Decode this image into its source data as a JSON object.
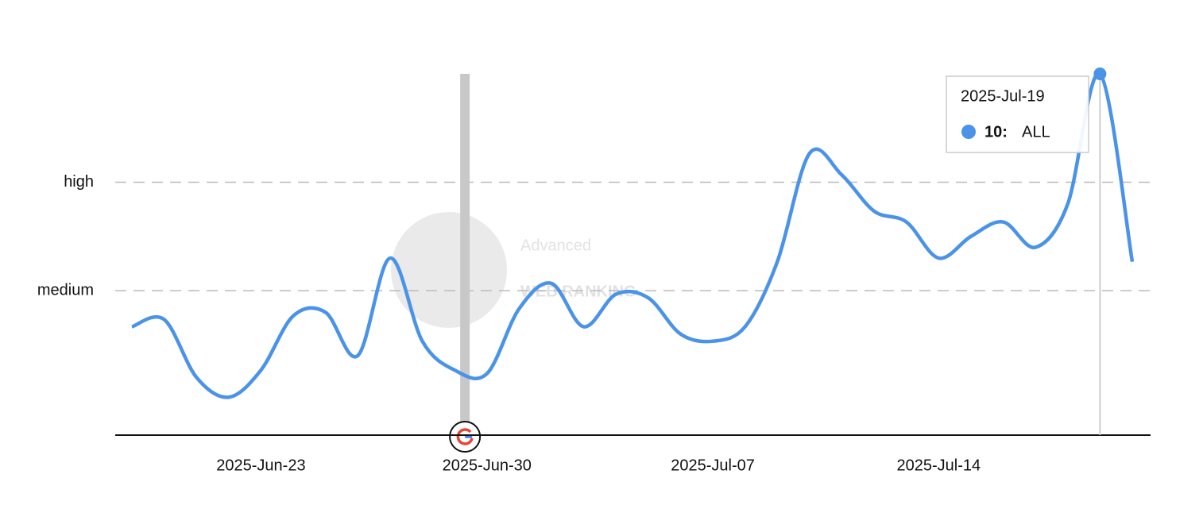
{
  "chart_data": {
    "type": "line",
    "x": [
      "2025-Jun-19",
      "2025-Jun-20",
      "2025-Jun-21",
      "2025-Jun-22",
      "2025-Jun-23",
      "2025-Jun-24",
      "2025-Jun-25",
      "2025-Jun-26",
      "2025-Jun-27",
      "2025-Jun-28",
      "2025-Jun-29",
      "2025-Jun-30",
      "2025-Jul-01",
      "2025-Jul-02",
      "2025-Jul-03",
      "2025-Jul-04",
      "2025-Jul-05",
      "2025-Jul-06",
      "2025-Jul-07",
      "2025-Jul-08",
      "2025-Jul-09",
      "2025-Jul-10",
      "2025-Jul-11",
      "2025-Jul-12",
      "2025-Jul-13",
      "2025-Jul-14",
      "2025-Jul-15",
      "2025-Jul-16",
      "2025-Jul-17",
      "2025-Jul-18",
      "2025-Jul-19",
      "2025-Jul-20"
    ],
    "series": [
      {
        "name": "ALL",
        "color": "#4a93e8",
        "values": [
          3.0,
          3.2,
          1.6,
          1.05,
          1.8,
          3.3,
          3.4,
          2.2,
          4.9,
          2.6,
          1.8,
          1.7,
          3.5,
          4.2,
          3.0,
          3.9,
          3.8,
          2.8,
          2.6,
          3.0,
          4.8,
          7.8,
          7.2,
          6.2,
          5.9,
          4.9,
          5.5,
          5.9,
          5.2,
          6.4,
          10,
          4.8
        ]
      }
    ],
    "ylim": [
      0,
      10
    ],
    "yticks": [
      {
        "value": 4,
        "label": "medium"
      },
      {
        "value": 7,
        "label": "high"
      }
    ],
    "xticks": [
      "2025-Jun-23",
      "2025-Jun-30",
      "2025-Jul-07",
      "2025-Jul-14"
    ],
    "grid": true,
    "events": [
      {
        "x": "2025-Jun-29"
      }
    ],
    "tooltip": {
      "title": "2025-Jul-19",
      "value": "10:",
      "series": "ALL"
    },
    "watermark": [
      "Advanced",
      "WEB RANKING"
    ]
  }
}
